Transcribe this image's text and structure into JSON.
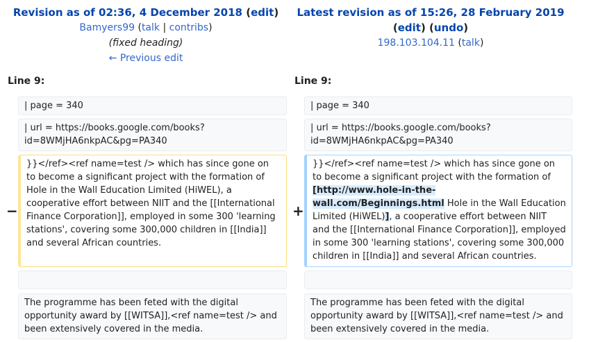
{
  "left": {
    "title_prefix": "Revision as of 02:36, 4 December 2018",
    "edit_label": "edit",
    "user": "Bamyers99",
    "talk": "talk",
    "contribs": "contribs",
    "comment": "(fixed heading)",
    "prev_edit": "← Previous edit",
    "line_label": "Line 9:"
  },
  "right": {
    "title_prefix": "Latest revision as of 15:26, 28 February 2019",
    "edit_label": "edit",
    "undo_label": "undo",
    "user": "198.103.104.11",
    "talk": "talk",
    "line_label": "Line 9:"
  },
  "diff": {
    "row1": "| page = 340",
    "row2": "| url = https://books.google.com/books?id=8WMjHA6nkpAC&pg=PA340",
    "left_changed": " }}</ref><ref name=test /> which has since gone on to become a significant project with the formation of Hole in the Wall Education Limited (HiWEL), a cooperative effort between NIIT and the [[International Finance Corporation]], employed in some 300 'learning stations', covering some 300,000 children in [[India]] and several African countries.",
    "right_changed_pre": " }}</ref><ref name=test /> which has since gone on to become a significant project with the formation of ",
    "right_changed_ins": "[http://www.hole-in-the-wall.com/Beginnings.html",
    "right_changed_mid": " Hole in the Wall Education Limited (HiWEL)",
    "right_changed_ins2": "]",
    "right_changed_post": ", a cooperative effort between NIIT and the [[International Finance Corporation]], employed in some 300 'learning stations', covering some 300,000 children in [[India]] and several African countries.",
    "row_last": "The programme has been feted with the digital opportunity award by [[WITSA]],<ref name=test /> and been extensively covered in the media.",
    "minus": "−",
    "plus": "+"
  },
  "colors": {
    "link": "#0645ad",
    "deleted_border": "#ffe49c",
    "added_border": "#a3d3ff",
    "ins_bg": "#d8ecff"
  }
}
